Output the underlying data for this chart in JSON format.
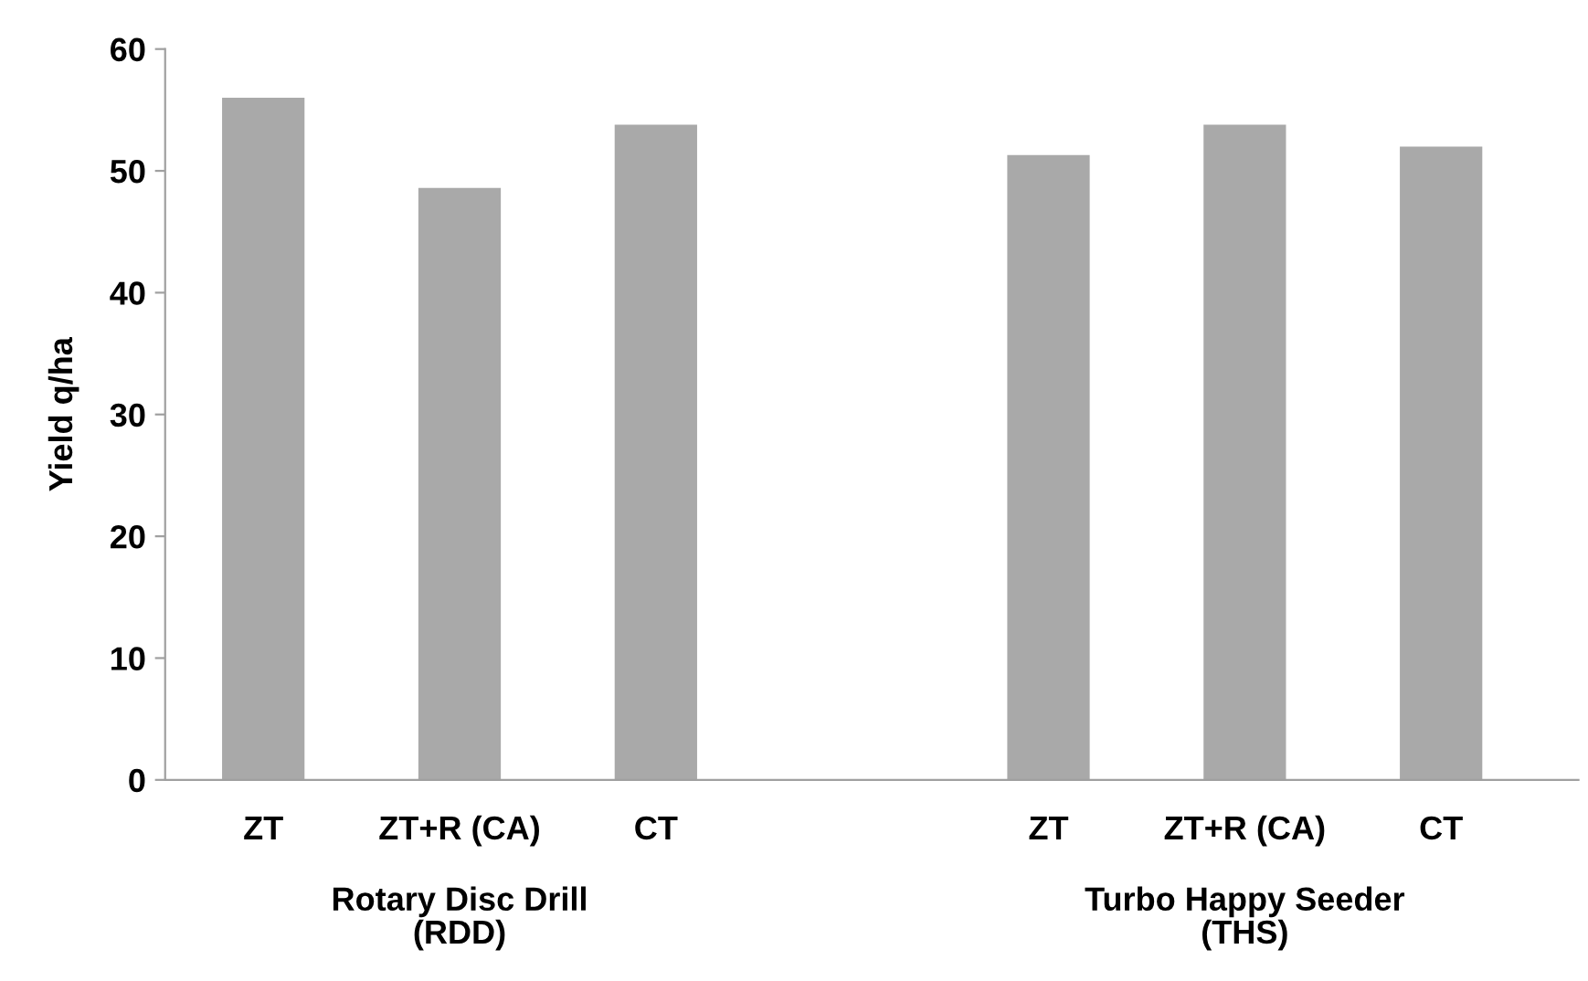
{
  "chart_data": {
    "type": "bar",
    "ylabel": "Yield q/ha",
    "categories": [
      "ZT",
      "ZT+R (CA)",
      "CT",
      null,
      "ZT",
      "ZT+R (CA)",
      "CT"
    ],
    "values": [
      56.0,
      48.6,
      53.8,
      null,
      51.3,
      53.8,
      52.0
    ],
    "color": "#a9a9a9",
    "ylim": [
      0,
      60
    ],
    "yticks": [
      0,
      10,
      20,
      30,
      40,
      50,
      60
    ],
    "grid": false,
    "legend": false,
    "annotations": [
      "Rotary Disc Drill\n(RDD)",
      "Turbo Happy Seeder\n(THS)"
    ]
  }
}
